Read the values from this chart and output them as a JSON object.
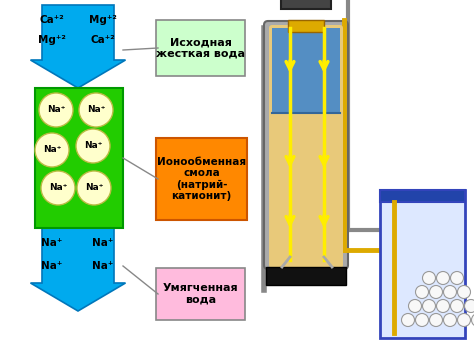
{
  "bg_color": "#ffffff",
  "top_arrow_color": "#00aaee",
  "bottom_arrow_color": "#00aaee",
  "resin_bg_color": "#22cc00",
  "bead_color": "#ffffcc",
  "bead_edge_color": "#bbbb44",
  "label1_bg": "#ccffcc",
  "label1_border": "#888888",
  "label1_text": "Исходная\nжесткая вода",
  "label2_bg": "#ff8800",
  "label2_border": "#cc5500",
  "label2_text": "Ионообменная\nсмола\n(натрий-\nкатионит)",
  "label3_bg": "#ffbbdd",
  "label3_border": "#888888",
  "label3_text": "Умягченная\nвода",
  "tank_outer_color": "#aaaaaa",
  "tank_body_color": "#e8c97a",
  "tank_water_color": "#4488cc",
  "tank_gold_color": "#ddaa00",
  "tank_black_color": "#111111",
  "arrow_yellow": "#ffee00",
  "salt_tank_border": "#3344bb",
  "salt_tank_bg": "#dde8ff",
  "connector_color": "#888888"
}
